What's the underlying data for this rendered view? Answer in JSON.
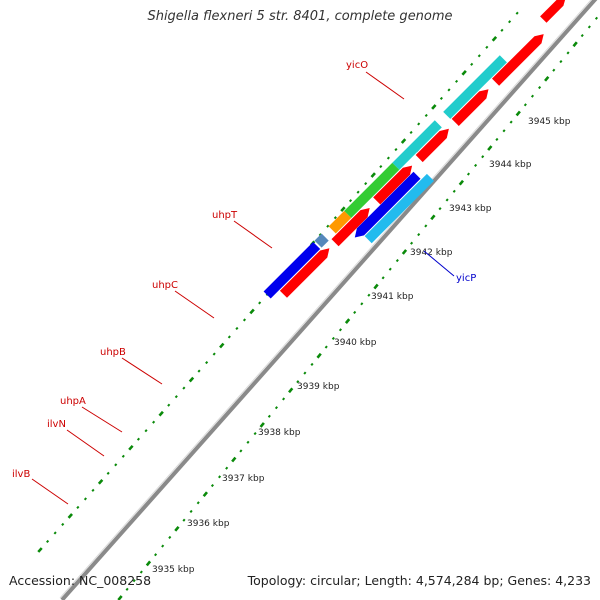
{
  "title": "Shigella flexneri 5 str. 8401, complete genome",
  "accession": "Accession: NC_008258",
  "topology": "Topology: circular; Length: 4,574,284 bp; Genes: 4,233",
  "colors": {
    "backbone": "#888888",
    "dots": "#0a8a0a",
    "label_forward": "#cc0000",
    "label_reverse": "#0000cc",
    "cds": "#ff0000",
    "cyan": "#22cccc",
    "blue": "#0000ee",
    "light_blue": "#22bbee",
    "green": "#33cc33",
    "orange": "#ff9900",
    "steel": "#5588bb",
    "gray": "#cccccc"
  },
  "ticks": [
    "3935 kbp",
    "3936 kbp",
    "3937 kbp",
    "3938 kbp",
    "3939 kbp",
    "3940 kbp",
    "3941 kbp",
    "3942 kbp",
    "3943 kbp",
    "3944 kbp",
    "3945 kbp"
  ],
  "genes": [
    {
      "name": "ilvB",
      "strand": "forward"
    },
    {
      "name": "ilvN",
      "strand": "forward"
    },
    {
      "name": "uhpA",
      "strand": "forward"
    },
    {
      "name": "uhpB",
      "strand": "forward"
    },
    {
      "name": "uhpC",
      "strand": "forward"
    },
    {
      "name": "uhpT",
      "strand": "forward"
    },
    {
      "name": "yicO",
      "strand": "forward"
    },
    {
      "name": "yicP",
      "strand": "reverse"
    }
  ],
  "features": {
    "forward_top": [
      {
        "gene": "ilvB",
        "color": "blue"
      },
      {
        "gene": "ilvN",
        "color": "steel"
      },
      {
        "gene": "uhpA",
        "color": "orange"
      },
      {
        "gene": "uhpB",
        "color": "green"
      },
      {
        "gene": "uhpC",
        "color": "cyan"
      },
      {
        "gene": "uhpT",
        "color": "cyan"
      },
      {
        "gene": "yicO",
        "color": "gray"
      },
      {
        "gene": "",
        "color": "cyan"
      }
    ],
    "reverse_top": {
      "gene": "yicP",
      "color": "blue"
    },
    "reverse_bottom": {
      "gene": "yicP",
      "color": "light_blue"
    }
  }
}
